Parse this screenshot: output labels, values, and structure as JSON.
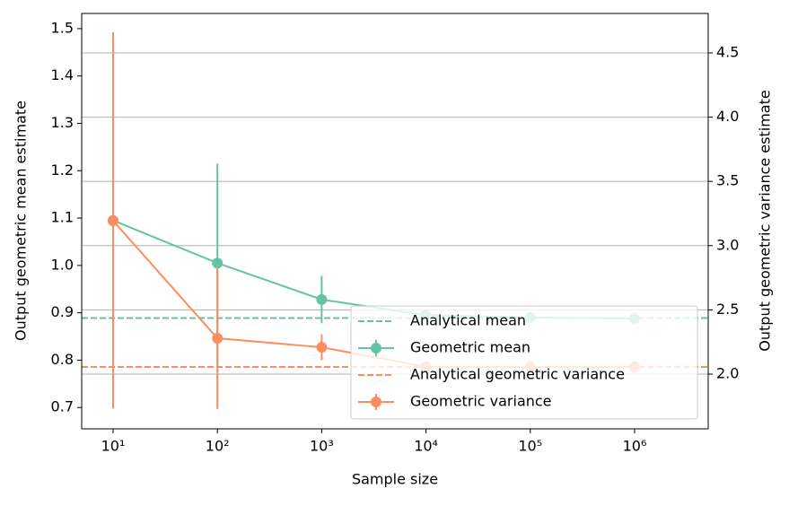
{
  "chart_data": {
    "type": "errorbar",
    "xlabel": "Sample size",
    "ylabel": "Output geometric mean estimate",
    "y2label": "Output geometric variance estimate",
    "x": [
      10,
      100,
      1000,
      10000,
      100000,
      1000000
    ],
    "xscale": "log",
    "xlim": [
      5,
      5080000
    ],
    "xticks": [
      {
        "value": 10,
        "label": "10¹"
      },
      {
        "value": 100,
        "label": "10²"
      },
      {
        "value": 1000,
        "label": "10³"
      },
      {
        "value": 10000,
        "label": "10⁴"
      },
      {
        "value": 100000,
        "label": "10⁵"
      },
      {
        "value": 1000000,
        "label": "10⁶"
      }
    ],
    "ylim": [
      0.655,
      1.532
    ],
    "yticks": [
      0.7,
      0.8,
      0.9,
      {
        "value": 1,
        "label": "1.0"
      },
      1.1,
      1.2,
      1.3,
      1.4,
      1.5
    ],
    "y2lim": [
      1.574,
      4.807
    ],
    "y2ticks": [
      {
        "value": 2,
        "label": "2.0"
      },
      2.5,
      {
        "value": 3,
        "label": "3.0"
      },
      3.5,
      {
        "value": 4,
        "label": "4.0"
      },
      4.5
    ],
    "grid": "y2",
    "legend": "lower right",
    "series": [
      {
        "name": "Analytical mean",
        "color": "#66c2a5",
        "style": "dashed",
        "y": 0.889
      },
      {
        "name": "Geometric mean",
        "color": "#66c2a5",
        "values": [
          1.095,
          1.005,
          0.928,
          0.895,
          0.89,
          0.888
        ],
        "errors": [
          0.397,
          0.21,
          0.05,
          0.005,
          0.005,
          0.005
        ]
      },
      {
        "name": "Analytical geometric variance",
        "color": "#fc8d62",
        "style": "dashed",
        "y": 2.056,
        "axis": "y2"
      },
      {
        "name": "Geometric variance",
        "color": "#fc8d62",
        "values": [
          3.194,
          2.279,
          2.209,
          2.056,
          2.056,
          2.056
        ],
        "errors": [
          1.46,
          0.55,
          0.1,
          0.01,
          0.01,
          0.01
        ],
        "axis": "y2"
      }
    ]
  }
}
